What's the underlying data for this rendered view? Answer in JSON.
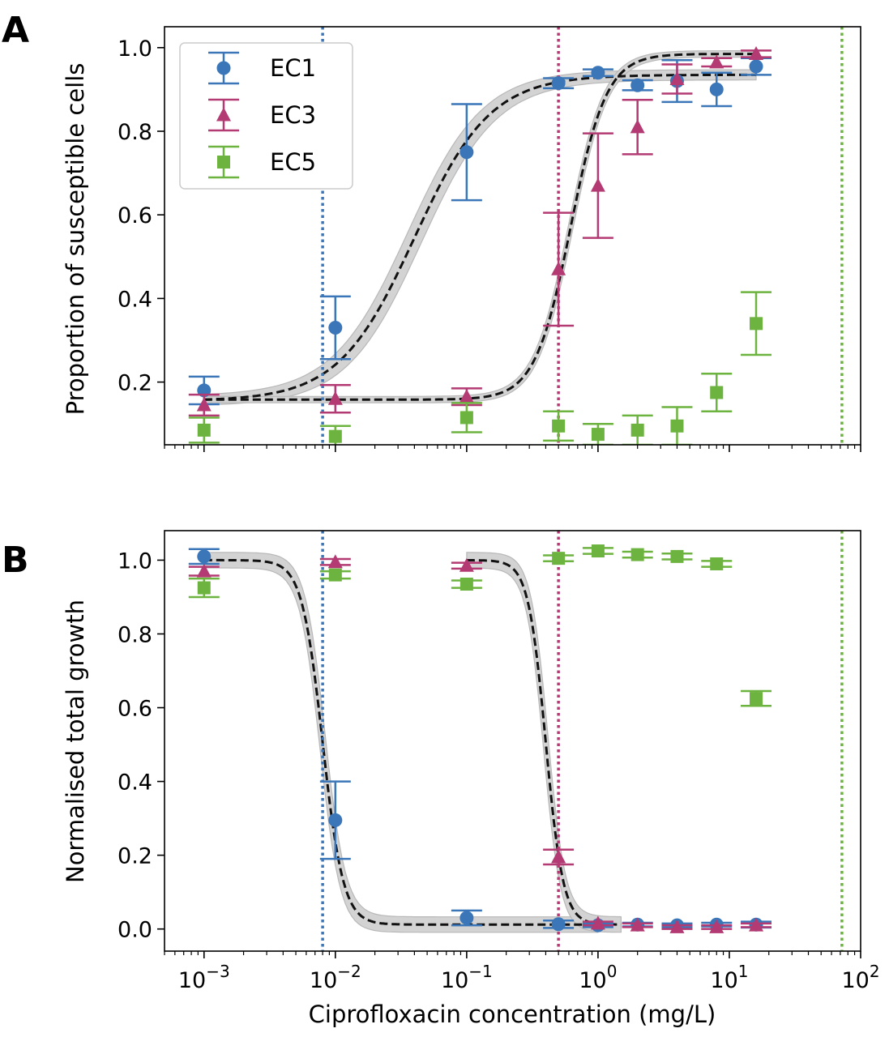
{
  "chart_data": [
    {
      "panel_label": "A",
      "type": "scatter",
      "xscale": "log",
      "xlim": [
        0.0005,
        100
      ],
      "ylim": [
        0.05,
        1.05
      ],
      "xlabel": "",
      "ylabel": "Proportion of susceptible cells",
      "yticks": [
        0.2,
        0.4,
        0.6,
        0.8,
        1.0
      ],
      "ytick_labels": [
        "0.2",
        "0.4",
        "0.6",
        "0.8",
        "1.0"
      ],
      "legend": {
        "placement": "top-left",
        "entries": [
          "EC1",
          "EC3",
          "EC5"
        ]
      },
      "vertical_lines": [
        {
          "x": 0.008,
          "color": "#3a76b8"
        },
        {
          "x": 0.5,
          "color": "#b33a72"
        },
        {
          "x": 72,
          "color": "#6db33f"
        }
      ],
      "series": [
        {
          "name": "EC1",
          "marker": "circle",
          "color": "#3a76b8",
          "points": [
            {
              "x": 0.001,
              "y": 0.18,
              "err": 0.033
            },
            {
              "x": 0.01,
              "y": 0.33,
              "err": 0.075
            },
            {
              "x": 0.1,
              "y": 0.75,
              "err": 0.115
            },
            {
              "x": 0.5,
              "y": 0.915,
              "err": 0.012
            },
            {
              "x": 1,
              "y": 0.94,
              "err": 0.008
            },
            {
              "x": 2,
              "y": 0.91,
              "err": 0.012
            },
            {
              "x": 4,
              "y": 0.92,
              "err": 0.05
            },
            {
              "x": 8,
              "y": 0.9,
              "err": 0.04
            },
            {
              "x": 16,
              "y": 0.955,
              "err": 0.02
            }
          ]
        },
        {
          "name": "EC3",
          "marker": "triangle",
          "color": "#b33a72",
          "points": [
            {
              "x": 0.001,
              "y": 0.145,
              "err": 0.025
            },
            {
              "x": 0.01,
              "y": 0.16,
              "err": 0.033
            },
            {
              "x": 0.1,
              "y": 0.165,
              "err": 0.02
            },
            {
              "x": 0.5,
              "y": 0.47,
              "err": 0.135
            },
            {
              "x": 1,
              "y": 0.67,
              "err": 0.125
            },
            {
              "x": 2,
              "y": 0.81,
              "err": 0.065
            },
            {
              "x": 4,
              "y": 0.925,
              "err": 0.035
            },
            {
              "x": 8,
              "y": 0.965,
              "err": 0.01
            },
            {
              "x": 16,
              "y": 0.985,
              "err": 0.008
            }
          ]
        },
        {
          "name": "EC5",
          "marker": "square",
          "color": "#6db33f",
          "points": [
            {
              "x": 0.001,
              "y": 0.085,
              "err": 0.03
            },
            {
              "x": 0.01,
              "y": 0.07,
              "err": 0.025
            },
            {
              "x": 0.1,
              "y": 0.115,
              "err": 0.035
            },
            {
              "x": 0.5,
              "y": 0.095,
              "err": 0.035
            },
            {
              "x": 1,
              "y": 0.075,
              "err": 0.025
            },
            {
              "x": 2,
              "y": 0.085,
              "err": 0.035
            },
            {
              "x": 4,
              "y": 0.095,
              "err": 0.045
            },
            {
              "x": 8,
              "y": 0.175,
              "err": 0.045
            },
            {
              "x": 16,
              "y": 0.34,
              "err": 0.075
            }
          ]
        }
      ],
      "fits": [
        {
          "low": 0.155,
          "high": 0.935,
          "ec50": 0.04,
          "slope": 1.5,
          "band_x": [
            0.001,
            16
          ],
          "band": 0.035
        },
        {
          "low": 0.158,
          "high": 0.985,
          "ec50": 0.62,
          "slope": 3.2,
          "band_x": [
            0.001,
            16
          ],
          "band": 0.022
        }
      ]
    },
    {
      "panel_label": "B",
      "type": "scatter",
      "xscale": "log",
      "xlim": [
        0.0005,
        100
      ],
      "ylim": [
        -0.06,
        1.08
      ],
      "xlabel": "Ciprofloxacin concentration (mg/L)",
      "ylabel": "Normalised total growth",
      "xticks": [
        0.001,
        0.01,
        0.1,
        1,
        10,
        100
      ],
      "xtick_labels": [
        [
          "10",
          "−3"
        ],
        [
          "10",
          "−2"
        ],
        [
          "10",
          "−1"
        ],
        [
          "10",
          "0"
        ],
        [
          "10",
          "1"
        ],
        [
          "10",
          "2"
        ]
      ],
      "yticks": [
        0.0,
        0.2,
        0.4,
        0.6,
        0.8,
        1.0
      ],
      "ytick_labels": [
        "0.0",
        "0.2",
        "0.4",
        "0.6",
        "0.8",
        "1.0"
      ],
      "vertical_lines": [
        {
          "x": 0.008,
          "color": "#3a76b8"
        },
        {
          "x": 0.5,
          "color": "#b33a72"
        },
        {
          "x": 72,
          "color": "#6db33f"
        }
      ],
      "series": [
        {
          "name": "EC1",
          "marker": "circle",
          "color": "#3a76b8",
          "points": [
            {
              "x": 0.001,
              "y": 1.01,
              "err": 0.02
            },
            {
              "x": 0.01,
              "y": 0.295,
              "err": 0.105
            },
            {
              "x": 0.1,
              "y": 0.03,
              "err": 0.02
            },
            {
              "x": 0.5,
              "y": 0.013,
              "err": 0.01
            },
            {
              "x": 1,
              "y": 0.01,
              "err": 0.005
            },
            {
              "x": 2,
              "y": 0.012,
              "err": 0.005
            },
            {
              "x": 4,
              "y": 0.01,
              "err": 0.005
            },
            {
              "x": 8,
              "y": 0.012,
              "err": 0.005
            },
            {
              "x": 16,
              "y": 0.012,
              "err": 0.008
            }
          ]
        },
        {
          "name": "EC3",
          "marker": "triangle",
          "color": "#b33a72",
          "points": [
            {
              "x": 0.001,
              "y": 0.97,
              "err": 0.012
            },
            {
              "x": 0.01,
              "y": 0.995,
              "err": 0.008
            },
            {
              "x": 0.1,
              "y": 0.985,
              "err": 0.008
            },
            {
              "x": 0.5,
              "y": 0.195,
              "err": 0.02
            },
            {
              "x": 1,
              "y": 0.015,
              "err": 0.005
            },
            {
              "x": 2,
              "y": 0.01,
              "err": 0.005
            },
            {
              "x": 4,
              "y": 0.005,
              "err": 0.005
            },
            {
              "x": 8,
              "y": 0.005,
              "err": 0.005
            },
            {
              "x": 16,
              "y": 0.01,
              "err": 0.005
            }
          ]
        },
        {
          "name": "EC5",
          "marker": "square",
          "color": "#6db33f",
          "points": [
            {
              "x": 0.001,
              "y": 0.925,
              "err": 0.025
            },
            {
              "x": 0.01,
              "y": 0.96,
              "err": 0.01
            },
            {
              "x": 0.1,
              "y": 0.935,
              "err": 0.01
            },
            {
              "x": 0.5,
              "y": 1.005,
              "err": 0.008
            },
            {
              "x": 1,
              "y": 1.025,
              "err": 0.008
            },
            {
              "x": 2,
              "y": 1.015,
              "err": 0.008
            },
            {
              "x": 4,
              "y": 1.01,
              "err": 0.008
            },
            {
              "x": 8,
              "y": 0.99,
              "err": 0.008
            },
            {
              "x": 16,
              "y": 0.625,
              "err": 0.02
            }
          ]
        }
      ],
      "fits": [
        {
          "low": 0.012,
          "high": 1.0,
          "ec50": 0.008,
          "slope": -5.5,
          "band_x": [
            0.001,
            1
          ],
          "band": 0.06
        },
        {
          "low": 0.012,
          "high": 1.0,
          "ec50": 0.4,
          "slope": -6.5,
          "band_x": [
            0.1,
            1.5
          ],
          "band": 0.06
        }
      ]
    }
  ]
}
